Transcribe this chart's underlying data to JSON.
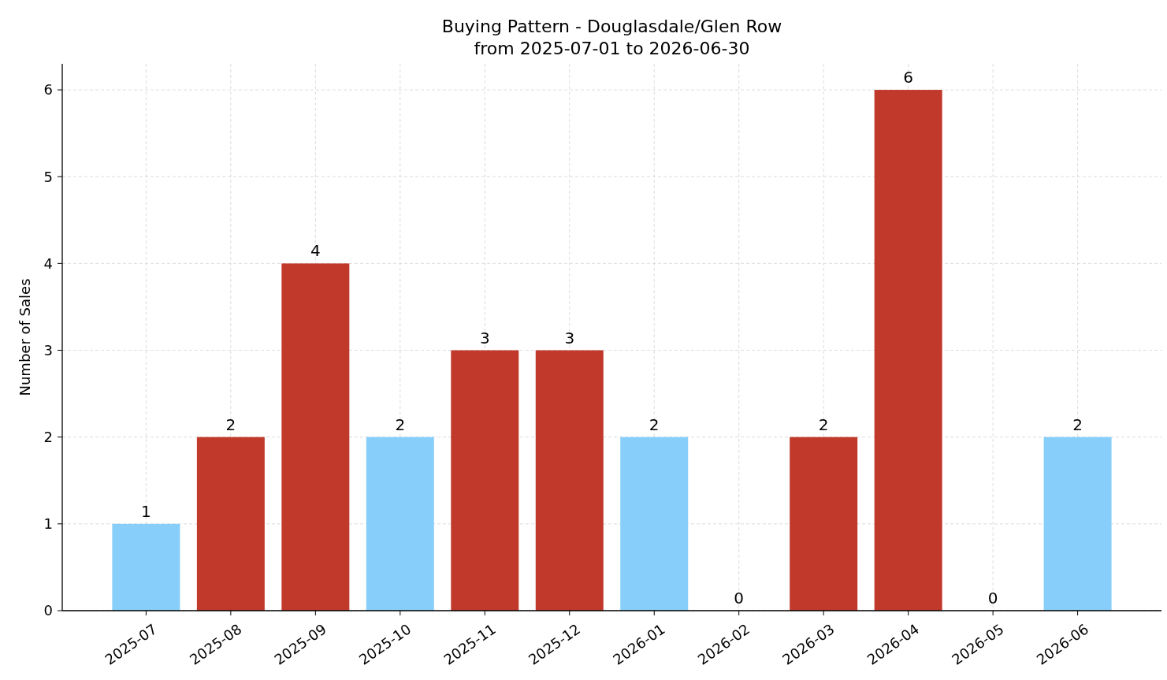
{
  "chart_data": {
    "type": "bar",
    "title": "Buying Pattern - Douglasdale/Glen Row\nfrom 2025-07-01 to 2026-06-30",
    "ylabel": "Number of Sales",
    "categories": [
      "2025-07",
      "2025-08",
      "2025-09",
      "2025-10",
      "2025-11",
      "2025-12",
      "2026-01",
      "2026-02",
      "2026-03",
      "2026-04",
      "2026-05",
      "2026-06"
    ],
    "values": [
      1,
      2,
      4,
      2,
      3,
      3,
      2,
      0,
      2,
      6,
      0,
      2
    ],
    "colors": [
      "#87cefa",
      "#c0392b",
      "#c0392b",
      "#87cefa",
      "#c0392b",
      "#c0392b",
      "#87cefa",
      "#87cefa",
      "#c0392b",
      "#c0392b",
      "#87cefa",
      "#87cefa"
    ],
    "ylim": [
      0,
      6.3
    ],
    "yticks": [
      0,
      1,
      2,
      3,
      4,
      5,
      6
    ],
    "grid": true,
    "data_labels": true
  }
}
